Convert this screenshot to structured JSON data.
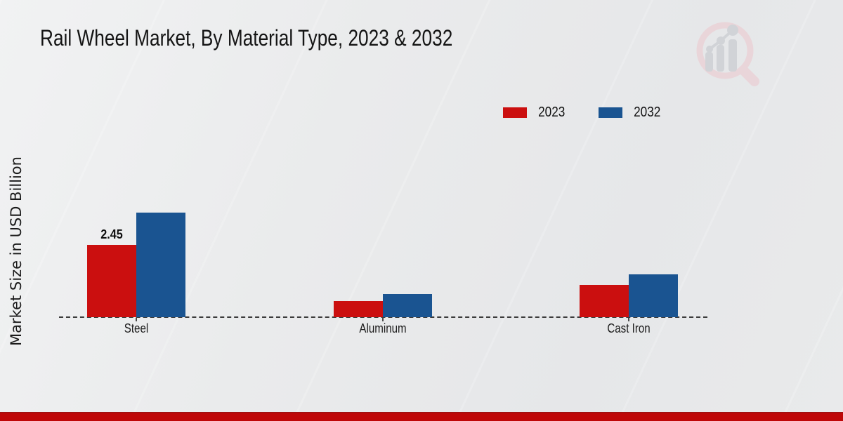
{
  "title": "Rail Wheel Market, By Material Type, 2023 & 2032",
  "ylabel": "Market Size in USD Billion",
  "legend": [
    {
      "label": "2023",
      "color": "#cb0f0f"
    },
    {
      "label": "2032",
      "color": "#1a5491"
    }
  ],
  "chart_data": {
    "type": "bar",
    "title": "Rail Wheel Market, By Material Type, 2023 & 2032",
    "xlabel": "",
    "ylabel": "Market Size in USD Billion",
    "categories": [
      "Steel",
      "Aluminum",
      "Cast Iron"
    ],
    "series": [
      {
        "name": "2023",
        "color": "#cb0f0f",
        "values": [
          2.45,
          0.55,
          1.1
        ]
      },
      {
        "name": "2032",
        "color": "#1a5491",
        "values": [
          3.55,
          0.78,
          1.45
        ]
      }
    ],
    "value_label": {
      "series": "2023",
      "category": "Steel",
      "text": "2.45"
    },
    "ylim": [
      0,
      4.5
    ],
    "grid": false,
    "baseline_style": "dashed",
    "legend_position": "upper-right"
  },
  "watermark": {
    "icon": "magnifier-bar-chart-logo",
    "ring_color": "#ebcfd4",
    "bars_color": "#c9ccd1"
  },
  "footer": {
    "band_color": "#bf0708",
    "band_edge_color": "#a31010"
  }
}
